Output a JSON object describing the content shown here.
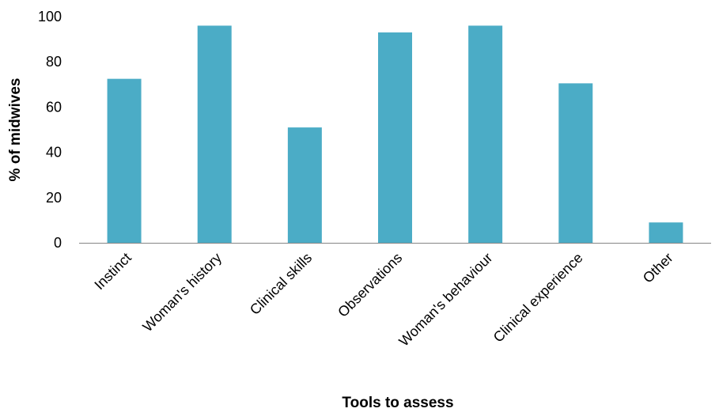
{
  "chart_data": {
    "type": "bar",
    "title": "",
    "xlabel": "Tools to assess",
    "ylabel": "% of midwives",
    "categories": [
      "Instinct",
      "Woman's history",
      "Clinical skills",
      "Observations",
      "Woman's behaviour",
      "Clinical experience",
      "Other"
    ],
    "values": [
      72.5,
      96,
      51,
      93,
      96,
      70.5,
      9
    ],
    "ylim": [
      0,
      100
    ],
    "yticks": [
      "0",
      "20",
      "40",
      "60",
      "80",
      "100"
    ],
    "grid": false,
    "legend": "none",
    "bar_color": "#4bacc6",
    "axis_color": "#868686"
  }
}
